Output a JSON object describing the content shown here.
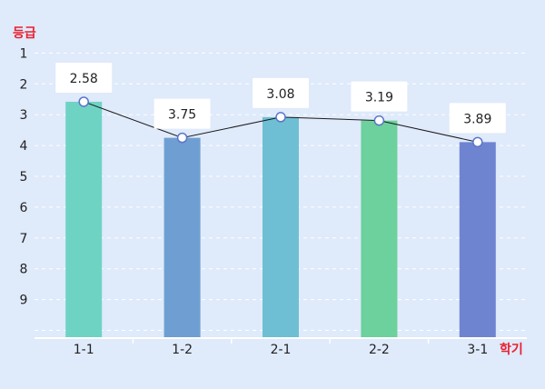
{
  "chart_data": {
    "type": "bar",
    "ylabel": "등급",
    "xlabel": "학기",
    "categories": [
      "1-1",
      "1-2",
      "2-1",
      "2-2",
      "3-1"
    ],
    "values": [
      2.58,
      3.75,
      3.08,
      3.19,
      3.89
    ],
    "value_labels": [
      "2.58",
      "3.75",
      "3.08",
      "3.19",
      "3.89"
    ],
    "y_ticks": [
      "1",
      "2",
      "3",
      "4",
      "5",
      "6",
      "7",
      "8",
      "9"
    ],
    "ylim": [
      0,
      10
    ],
    "y_inverted": true,
    "bar_colors": [
      "#6fd3c4",
      "#6f9fd2",
      "#6ebfd3",
      "#6cd19c",
      "#6f84d1"
    ],
    "line_overlay": true,
    "line_color": "#1a1a1a",
    "axis_label_color": "#e8202f",
    "grid": "dashed"
  }
}
